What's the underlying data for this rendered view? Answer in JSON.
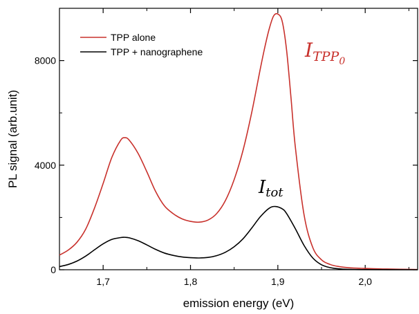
{
  "chart_data": {
    "type": "line",
    "xlabel": "emission energy (eV)",
    "ylabel": "PL signal (arb.unit)",
    "xlim": [
      1.65,
      2.06
    ],
    "ylim": [
      0,
      10000
    ],
    "x_ticks": [
      "1,7",
      "1,8",
      "1,9",
      "2,0"
    ],
    "x_tick_values": [
      1.7,
      1.8,
      1.9,
      2.0
    ],
    "y_ticks": [
      "0",
      "4000",
      "8000"
    ],
    "y_tick_values": [
      0,
      4000,
      8000
    ],
    "legend": {
      "position": "top-left"
    },
    "series": [
      {
        "name": "TPP alone",
        "color": "#c8302b",
        "x": [
          1.65,
          1.66,
          1.67,
          1.68,
          1.69,
          1.7,
          1.71,
          1.72,
          1.725,
          1.73,
          1.74,
          1.75,
          1.76,
          1.77,
          1.78,
          1.79,
          1.8,
          1.81,
          1.82,
          1.83,
          1.84,
          1.85,
          1.86,
          1.87,
          1.88,
          1.885,
          1.89,
          1.895,
          1.9,
          1.905,
          1.91,
          1.915,
          1.92,
          1.93,
          1.94,
          1.95,
          1.96,
          1.97,
          1.98,
          1.99,
          2.0,
          2.01,
          2.02,
          2.03,
          2.04,
          2.05,
          2.06
        ],
        "y": [
          560,
          750,
          1050,
          1550,
          2350,
          3300,
          4300,
          4950,
          5050,
          4950,
          4450,
          3750,
          3000,
          2450,
          2150,
          1950,
          1850,
          1820,
          1900,
          2150,
          2650,
          3450,
          4550,
          6000,
          7700,
          8500,
          9200,
          9700,
          9780,
          9500,
          8400,
          6600,
          4700,
          2100,
          850,
          380,
          200,
          120,
          80,
          60,
          50,
          40,
          30,
          25,
          20,
          15,
          10
        ]
      },
      {
        "name": "TPP + nanographene",
        "color": "#000000",
        "x": [
          1.65,
          1.66,
          1.67,
          1.68,
          1.69,
          1.7,
          1.71,
          1.72,
          1.725,
          1.73,
          1.74,
          1.75,
          1.76,
          1.77,
          1.78,
          1.79,
          1.8,
          1.81,
          1.82,
          1.83,
          1.84,
          1.85,
          1.86,
          1.87,
          1.88,
          1.89,
          1.897,
          1.905,
          1.91,
          1.92,
          1.93,
          1.94,
          1.95,
          1.96,
          1.97,
          1.98,
          2.0,
          2.06
        ],
        "y": [
          120,
          200,
          330,
          520,
          760,
          990,
          1160,
          1230,
          1240,
          1220,
          1110,
          950,
          780,
          640,
          550,
          490,
          460,
          450,
          470,
          540,
          670,
          880,
          1180,
          1590,
          2030,
          2350,
          2420,
          2330,
          2150,
          1570,
          930,
          450,
          190,
          80,
          35,
          15,
          5,
          0
        ]
      }
    ],
    "annotations": [
      {
        "base": "I",
        "subscript": "tot",
        "color": "#000000"
      },
      {
        "base": "I",
        "subscript": "TPP",
        "subsubscript": "0",
        "color": "#c8302b"
      }
    ]
  }
}
